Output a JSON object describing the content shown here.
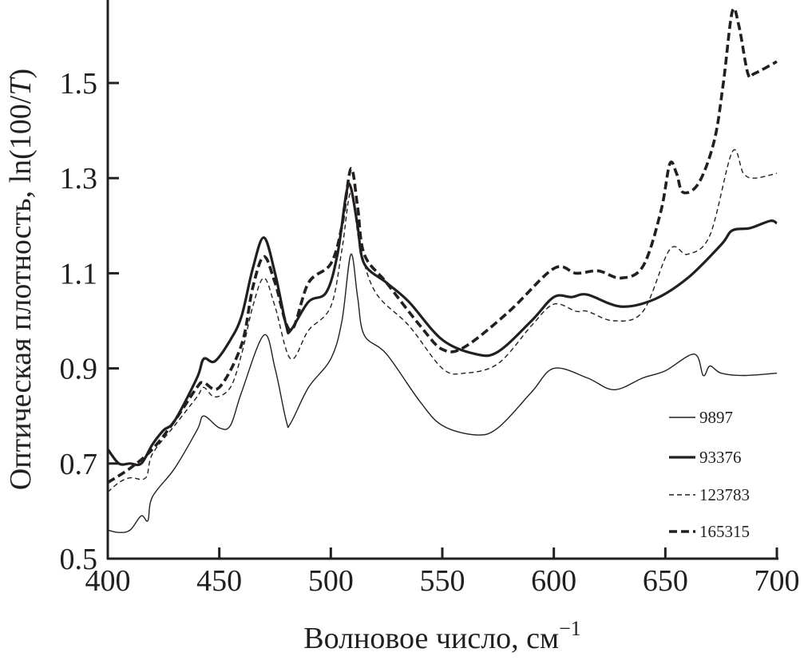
{
  "chart_data": {
    "type": "line",
    "title": "",
    "xlabel": {
      "main": "Волновое число, см",
      "sup": "−1"
    },
    "ylabel": {
      "main": "Оптическая плотность, ln(100/",
      "italic": "T",
      "end": ")"
    },
    "xlim": [
      400,
      700
    ],
    "ylim": [
      0.5,
      1.65
    ],
    "xticks": [
      400,
      450,
      500,
      550,
      600,
      650,
      700
    ],
    "xtick_labels": [
      "400",
      "450",
      "500",
      "550",
      "600",
      "650",
      "700"
    ],
    "yticks": [
      0.5,
      0.7,
      0.9,
      1.1,
      1.3,
      1.5
    ],
    "ytick_labels": [
      "0.5",
      "0.7",
      "0.9",
      "1.1",
      "1.3",
      "1.5"
    ],
    "grid": false,
    "legend_position": "bottom-right",
    "series": [
      {
        "name": "9897",
        "style": "thin-solid",
        "x": [
          400,
          405,
          410,
          415,
          418,
          420,
          430,
          440,
          443,
          450,
          455,
          460,
          470,
          475,
          480,
          482,
          490,
          500,
          505,
          509,
          512,
          515,
          525,
          540,
          550,
          565,
          575,
          590,
          600,
          615,
          627,
          640,
          650,
          663,
          667,
          670,
          675,
          685,
          700
        ],
        "y": [
          0.56,
          0.555,
          0.56,
          0.59,
          0.58,
          0.63,
          0.69,
          0.77,
          0.8,
          0.775,
          0.78,
          0.85,
          0.97,
          0.9,
          0.79,
          0.785,
          0.86,
          0.92,
          1.0,
          1.14,
          1.05,
          0.97,
          0.93,
          0.83,
          0.78,
          0.76,
          0.775,
          0.85,
          0.9,
          0.88,
          0.855,
          0.88,
          0.895,
          0.93,
          0.885,
          0.905,
          0.89,
          0.885,
          0.89
        ]
      },
      {
        "name": "93376",
        "style": "thick-solid",
        "x": [
          400,
          405,
          410,
          415,
          420,
          425,
          430,
          440,
          443,
          448,
          455,
          460,
          465,
          470,
          475,
          480,
          482,
          490,
          498,
          503,
          507,
          509,
          512,
          515,
          525,
          535,
          550,
          565,
          575,
          590,
          600,
          608,
          615,
          630,
          645,
          660,
          675,
          680,
          688,
          697,
          700
        ],
        "y": [
          0.73,
          0.7,
          0.7,
          0.7,
          0.74,
          0.77,
          0.79,
          0.88,
          0.92,
          0.915,
          0.96,
          1.01,
          1.11,
          1.175,
          1.1,
          0.99,
          0.98,
          1.04,
          1.06,
          1.14,
          1.27,
          1.28,
          1.2,
          1.12,
          1.08,
          1.04,
          0.96,
          0.93,
          0.935,
          1.0,
          1.05,
          1.05,
          1.055,
          1.03,
          1.045,
          1.09,
          1.16,
          1.19,
          1.195,
          1.21,
          1.205
        ]
      },
      {
        "name": "123783",
        "style": "thin-dashed",
        "x": [
          400,
          405,
          410,
          417,
          420,
          430,
          440,
          443,
          448,
          455,
          460,
          465,
          470,
          475,
          482,
          490,
          500,
          505,
          509,
          513,
          520,
          535,
          550,
          560,
          575,
          590,
          600,
          610,
          615,
          627,
          640,
          652,
          660,
          670,
          680,
          685,
          690,
          700
        ],
        "y": [
          0.64,
          0.66,
          0.67,
          0.67,
          0.72,
          0.78,
          0.84,
          0.86,
          0.84,
          0.86,
          0.93,
          1.03,
          1.09,
          1.03,
          0.92,
          0.98,
          1.03,
          1.15,
          1.27,
          1.16,
          1.06,
          0.99,
          0.9,
          0.89,
          0.91,
          0.99,
          1.035,
          1.02,
          1.02,
          1.0,
          1.02,
          1.15,
          1.14,
          1.18,
          1.355,
          1.31,
          1.3,
          1.31
        ]
      },
      {
        "name": "165315",
        "style": "thick-dashed",
        "x": [
          400,
          410,
          420,
          430,
          440,
          443,
          450,
          460,
          465,
          470,
          475,
          482,
          490,
          500,
          505,
          509,
          512,
          515,
          525,
          540,
          550,
          560,
          580,
          600,
          610,
          620,
          630,
          640,
          648,
          652,
          655,
          658,
          665,
          672,
          676,
          680,
          683,
          687,
          690,
          700
        ],
        "y": [
          0.66,
          0.69,
          0.73,
          0.79,
          0.86,
          0.87,
          0.86,
          0.95,
          1.07,
          1.135,
          1.08,
          0.98,
          1.08,
          1.12,
          1.2,
          1.32,
          1.24,
          1.14,
          1.08,
          0.99,
          0.94,
          0.945,
          1.02,
          1.11,
          1.1,
          1.105,
          1.09,
          1.115,
          1.23,
          1.33,
          1.31,
          1.27,
          1.29,
          1.38,
          1.5,
          1.65,
          1.62,
          1.52,
          1.52,
          1.545
        ]
      }
    ]
  }
}
